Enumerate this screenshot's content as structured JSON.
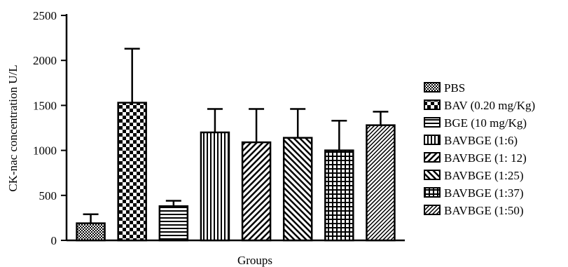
{
  "chart_data": {
    "type": "bar",
    "title": "",
    "xlabel": "Groups",
    "ylabel": "CK-nac concentration U/L",
    "ylim": [
      0,
      2500
    ],
    "yticks": [
      0,
      500,
      1000,
      1500,
      2000,
      2500
    ],
    "grid": false,
    "legend_position": "right",
    "categories": [
      "PBS",
      "BAV (0.20 mg/Kg)",
      "BGE (10 mg/Kg)",
      "BAVBGE (1:6)",
      "BAVBGE (1: 12)",
      "BAVBGE (1:25)",
      "BAVBGE (1:37)",
      "BAVBGE (1:50)"
    ],
    "values": [
      190,
      1530,
      380,
      1200,
      1090,
      1140,
      1000,
      1280
    ],
    "errors": [
      100,
      600,
      60,
      260,
      370,
      320,
      330,
      150
    ],
    "patterns": [
      "dots",
      "checker",
      "hlines",
      "vlines",
      "diag-right",
      "diag-left",
      "grid",
      "diag-fine"
    ],
    "bar_color": "#000000"
  }
}
